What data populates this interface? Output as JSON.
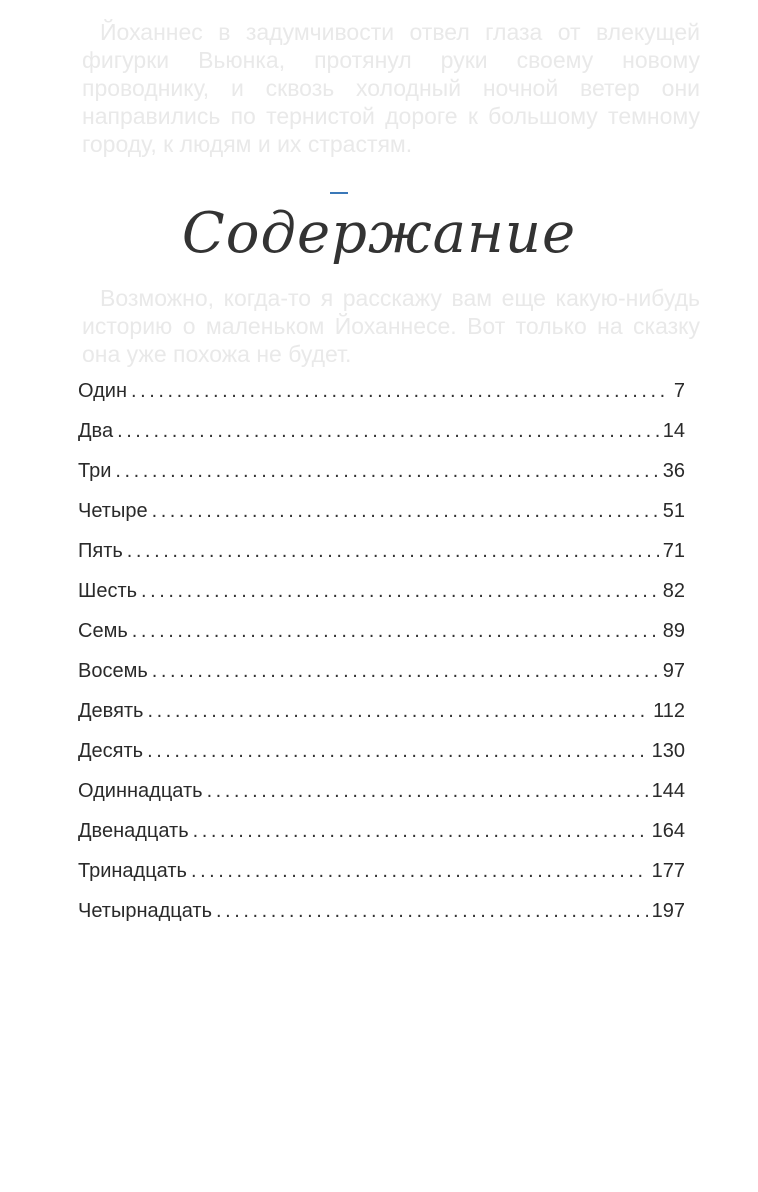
{
  "show_through": {
    "paragraph1": "Йоханнес в задумчивости отвел глаза от влекущей фигурки Вьюнка, протянул руки своему новому проводнику, и сквозь холодный ночной ветер они направились по тернистой дороге к большому темному городу, к людям и их страстям.",
    "paragraph2": "Возможно, когда-то я расскажу вам еще какую-нибудь историю о маленьком Йоханнесе. Вот только на сказку она уже похожа не будет."
  },
  "title": "Содержание",
  "toc": [
    {
      "label": "Один",
      "page": "7"
    },
    {
      "label": "Два",
      "page": "14"
    },
    {
      "label": "Три",
      "page": "36"
    },
    {
      "label": "Четыре",
      "page": "51"
    },
    {
      "label": "Пять",
      "page": "71"
    },
    {
      "label": "Шесть",
      "page": "82"
    },
    {
      "label": "Семь",
      "page": "89"
    },
    {
      "label": "Восемь",
      "page": "97"
    },
    {
      "label": "Девять",
      "page": "112"
    },
    {
      "label": "Десять",
      "page": "130"
    },
    {
      "label": "Одиннадцать",
      "page": "144"
    },
    {
      "label": "Двенадцать",
      "page": "164"
    },
    {
      "label": "Тринадцать",
      "page": "177"
    },
    {
      "label": "Четырнадцать",
      "page": "197"
    }
  ]
}
